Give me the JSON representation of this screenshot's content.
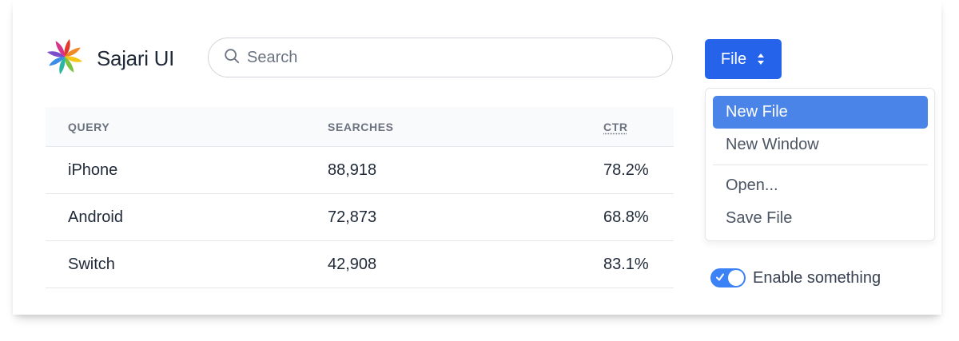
{
  "brand": {
    "name": "Sajari UI",
    "logo_icon": "pinwheel-logo-icon"
  },
  "search": {
    "placeholder": "Search",
    "value": "",
    "icon": "search-icon"
  },
  "table": {
    "columns": [
      "QUERY",
      "SEARCHES",
      "CTR"
    ],
    "rows": [
      {
        "query": "iPhone",
        "searches": "88,918",
        "ctr": "78.2%"
      },
      {
        "query": "Android",
        "searches": "72,873",
        "ctr": "68.8%"
      },
      {
        "query": "Switch",
        "searches": "42,908",
        "ctr": "83.1%"
      }
    ]
  },
  "file_button": {
    "label": "File",
    "icon": "selector-icon",
    "color": "#2563eb"
  },
  "file_menu": {
    "items": [
      "New File",
      "New Window",
      "Open...",
      "Save File"
    ],
    "active_item": "New File",
    "active_color": "#4a84e8"
  },
  "toggle": {
    "label": "Enable something",
    "checked": true,
    "color": "#3b82f6"
  }
}
